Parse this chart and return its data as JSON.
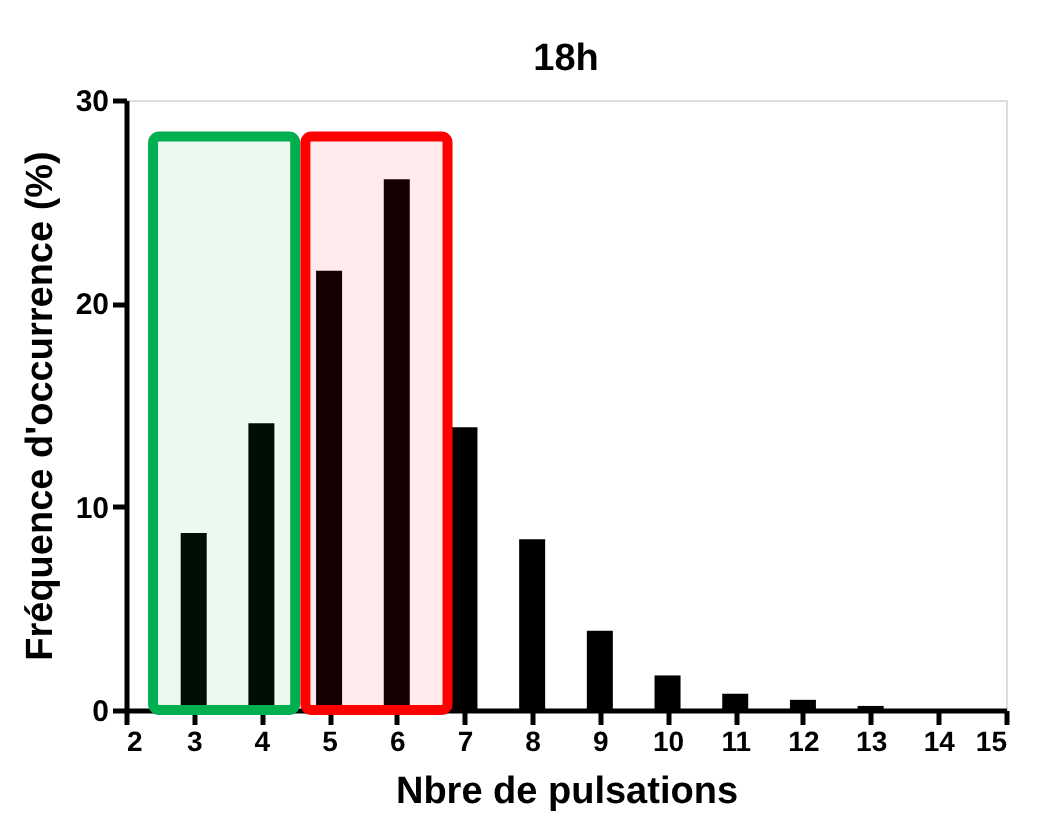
{
  "chart_data": {
    "type": "bar",
    "title": "18h",
    "xlabel": "Nbre de pulsations",
    "ylabel": "Fréquence d'occurrence (%)",
    "x": [
      3,
      4,
      5,
      6,
      7,
      8,
      9,
      10,
      11,
      12,
      13,
      14,
      15
    ],
    "values": [
      8.7,
      14.1,
      21.6,
      26.1,
      13.9,
      8.4,
      3.9,
      1.7,
      0.8,
      0.5,
      0.2,
      0,
      0
    ],
    "color": "#000000",
    "xlim": [
      2,
      15
    ],
    "xticks": [
      2,
      3,
      4,
      5,
      6,
      7,
      8,
      9,
      10,
      11,
      12,
      13,
      14,
      15
    ],
    "ylim": [
      0,
      30
    ],
    "yticks": [
      0,
      10,
      20,
      30
    ],
    "grid": false,
    "bands": [
      {
        "axis": "x",
        "from": 2.4,
        "to": 4.5,
        "color": "#00b050"
      },
      {
        "axis": "x",
        "from": 4.65,
        "to": 6.75,
        "color": "#ff0000"
      }
    ]
  }
}
